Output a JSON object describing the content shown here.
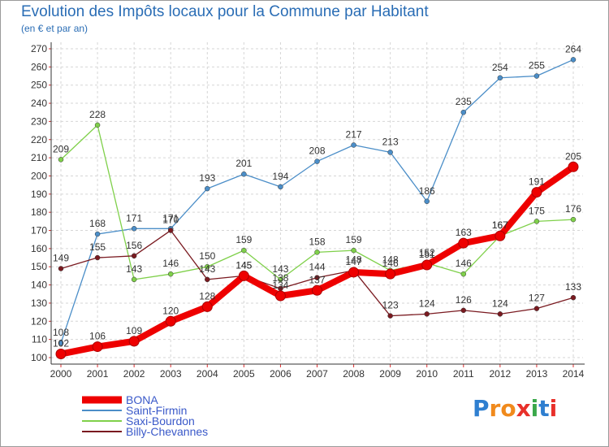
{
  "title": "Evolution des Impôts locaux pour la Commune par Habitant",
  "subtitle": "(en € et par an)",
  "logo": {
    "text": "Proxiti",
    "letters": [
      "P",
      "r",
      "o",
      "x",
      "i",
      "t",
      "i"
    ],
    "colors": [
      "#2f7fd0",
      "#f08a1c",
      "#f08a1c",
      "#e8302a",
      "#3aa84a",
      "#2f7fd0",
      "#e8302a"
    ]
  },
  "chart_data": {
    "type": "line",
    "title": "Evolution des Impôts locaux pour la Commune par Habitant",
    "subtitle": "(en € et par an)",
    "xlabel": "",
    "ylabel": "",
    "ylim": [
      100,
      270
    ],
    "ytick_step": 10,
    "grid": true,
    "legend_position": "bottom-left",
    "x": [
      "2000",
      "2001",
      "2002",
      "2003",
      "2004",
      "2005",
      "2006",
      "2007",
      "2008",
      "2009",
      "2010",
      "2011",
      "2012",
      "2013",
      "2014"
    ],
    "series": [
      {
        "name": "BONA",
        "color": "#ee0000",
        "values": [
          102,
          106,
          109,
          120,
          128,
          145,
          134,
          137,
          147,
          146,
          151,
          163,
          167,
          191,
          205
        ]
      },
      {
        "name": "Saint-Firmin",
        "color": "#4b8ec8",
        "values": [
          108,
          168,
          171,
          171,
          193,
          201,
          194,
          208,
          217,
          213,
          186,
          235,
          254,
          255,
          264
        ]
      },
      {
        "name": "Saxi-Bourdon",
        "color": "#7fd04a",
        "values": [
          209,
          228,
          143,
          146,
          150,
          159,
          143,
          158,
          159,
          148,
          152,
          146,
          167,
          175,
          176
        ]
      },
      {
        "name": "Billy-Chevannes",
        "color": "#7a1a20",
        "values": [
          149,
          155,
          156,
          170,
          143,
          145,
          138,
          144,
          148,
          123,
          124,
          126,
          124,
          127,
          133
        ]
      }
    ]
  }
}
